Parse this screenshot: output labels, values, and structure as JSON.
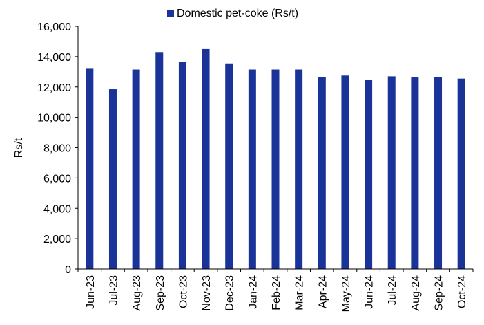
{
  "chart_data": {
    "type": "bar",
    "title": "",
    "xlabel": "",
    "ylabel": "Rs/t",
    "ylim": [
      0,
      16000
    ],
    "yticks": [
      0,
      2000,
      4000,
      6000,
      8000,
      10000,
      12000,
      14000,
      16000
    ],
    "ytick_labels": [
      "0",
      "2,000",
      "4,000",
      "6,000",
      "8,000",
      "10,000",
      "12,000",
      "14,000",
      "16,000"
    ],
    "grid": false,
    "legend": "top",
    "categories": [
      "Jun-23",
      "Jul-23",
      "Aug-23",
      "Sep-23",
      "Oct-23",
      "Nov-23",
      "Dec-23",
      "Jan-24",
      "Feb-24",
      "Mar-24",
      "Apr-24",
      "May-24",
      "Jun-24",
      "Jul-24",
      "Aug-24",
      "Sep-24",
      "Oct-24"
    ],
    "series": [
      {
        "name": "Domestic pet-coke (Rs/t)",
        "color": "#1a3399",
        "values": [
          13200,
          11850,
          13150,
          14300,
          13650,
          14500,
          13550,
          13150,
          13150,
          13150,
          12650,
          12750,
          12450,
          12700,
          12650,
          12650,
          12550
        ]
      }
    ]
  }
}
